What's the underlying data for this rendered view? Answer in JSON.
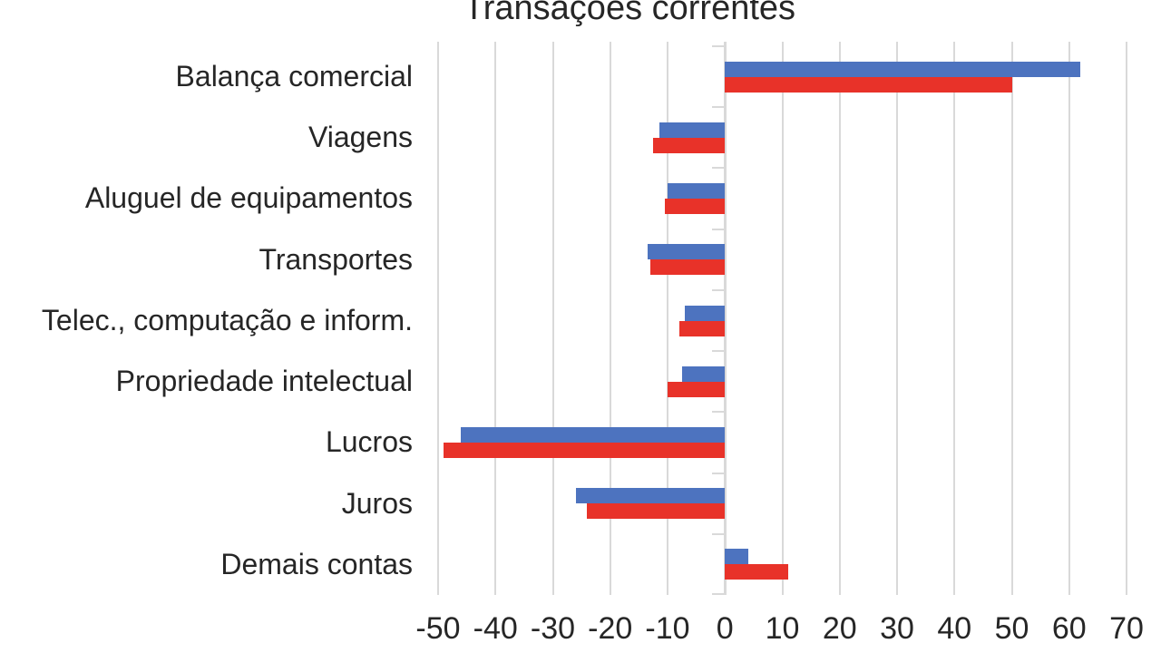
{
  "chart_data": {
    "type": "bar",
    "orientation": "horizontal",
    "title": "Transações correntes",
    "categories": [
      "Balança comercial",
      "Viagens",
      "Aluguel de equipamentos",
      "Transportes",
      "Telec., computação e inform.",
      "Propriedade intelectual",
      "Lucros",
      "Juros",
      "Demais contas"
    ],
    "series": [
      {
        "name": "blue",
        "color": "#4d73bf",
        "values": [
          62,
          -11.5,
          -10,
          -13.5,
          -7,
          -7.5,
          -46,
          -26,
          4
        ]
      },
      {
        "name": "red",
        "color": "#e83229",
        "values": [
          50,
          -12.5,
          -10.5,
          -13,
          -8,
          -10,
          -49,
          -24,
          11
        ]
      }
    ],
    "x_ticks": [
      -50,
      -40,
      -30,
      -20,
      -10,
      0,
      10,
      20,
      30,
      40,
      50,
      60,
      70
    ],
    "xlim": [
      -50,
      70
    ],
    "xlabel": "",
    "ylabel": "",
    "legend": "none",
    "grid": "vertical",
    "gridline_color": "#d9d9d9",
    "text_color": "#262626",
    "background": "#ffffff"
  }
}
